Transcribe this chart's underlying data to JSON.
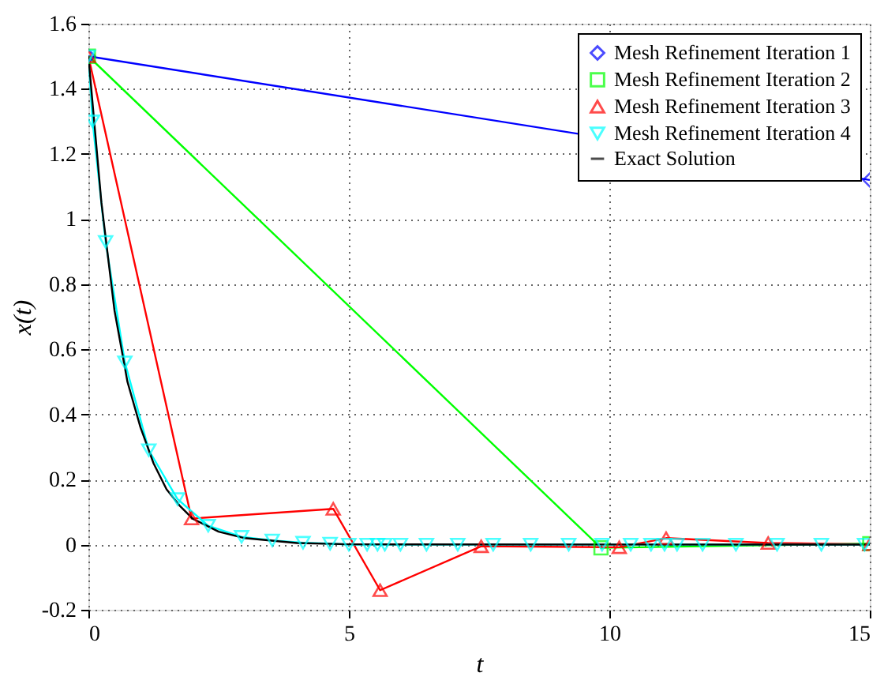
{
  "chart_data": {
    "type": "line",
    "xlabel": "t",
    "ylabel": "x(t)",
    "xlim": [
      0,
      15
    ],
    "ylim": [
      -0.2,
      1.6
    ],
    "xticks": [
      0,
      5,
      10,
      15
    ],
    "yticks": [
      -0.2,
      0,
      0.2,
      0.4,
      0.6,
      0.8,
      1,
      1.2,
      1.4,
      1.6
    ],
    "grid": true,
    "legend": "top right",
    "line_style": "solid",
    "series": [
      {
        "name": "Mesh Refinement Iteration 1",
        "color": "#0000ff",
        "marker": "diamond",
        "x": [
          0,
          15
        ],
        "values": [
          1.5,
          1.12
        ]
      },
      {
        "name": "Mesh Refinement Iteration 2",
        "color": "#00ff00",
        "marker": "square",
        "x": [
          0,
          9.84,
          15
        ],
        "values": [
          1.5,
          -0.01,
          0.003
        ]
      },
      {
        "name": "Mesh Refinement Iteration 3",
        "color": "#ff0000",
        "marker": "triangle",
        "x": [
          0,
          1.98,
          4.7,
          5.6,
          7.54,
          10.19,
          11.09,
          13.05,
          15
        ],
        "values": [
          1.5,
          0.08,
          0.11,
          -0.14,
          -0.005,
          -0.008,
          0.02,
          0.005,
          0.001
        ]
      },
      {
        "name": "Mesh Refinement Iteration 4",
        "color": "#00ffff",
        "marker": "triangle-down",
        "x": [
          0,
          0.08,
          0.33,
          0.7,
          1.16,
          1.71,
          2.3,
          2.94,
          3.53,
          4.12,
          4.64,
          5.0,
          5.35,
          5.55,
          5.69,
          5.99,
          6.49,
          7.09,
          7.77,
          8.49,
          9.22,
          9.86,
          10.41,
          10.8,
          11.06,
          11.3,
          11.79,
          12.43,
          13.22,
          14.07,
          14.9
        ],
        "values": [
          1.5,
          1.3,
          0.93,
          0.56,
          0.29,
          0.14,
          0.058,
          0.024,
          0.013,
          0.006,
          0.003,
          0,
          0,
          0,
          0,
          0,
          0,
          0,
          0,
          0,
          0,
          0,
          0,
          0,
          0,
          0,
          0,
          0,
          0,
          0,
          0
        ]
      },
      {
        "name": "Exact Solution",
        "color": "#000000",
        "marker": "none",
        "x": [
          0,
          0.25,
          0.5,
          0.75,
          1,
          1.25,
          1.5,
          1.75,
          2,
          2.5,
          3,
          4,
          5,
          15
        ],
        "values": [
          1.5,
          1.05,
          0.72,
          0.5,
          0.36,
          0.25,
          0.17,
          0.12,
          0.08,
          0.04,
          0.02,
          0.005,
          0.001,
          0
        ]
      }
    ]
  }
}
